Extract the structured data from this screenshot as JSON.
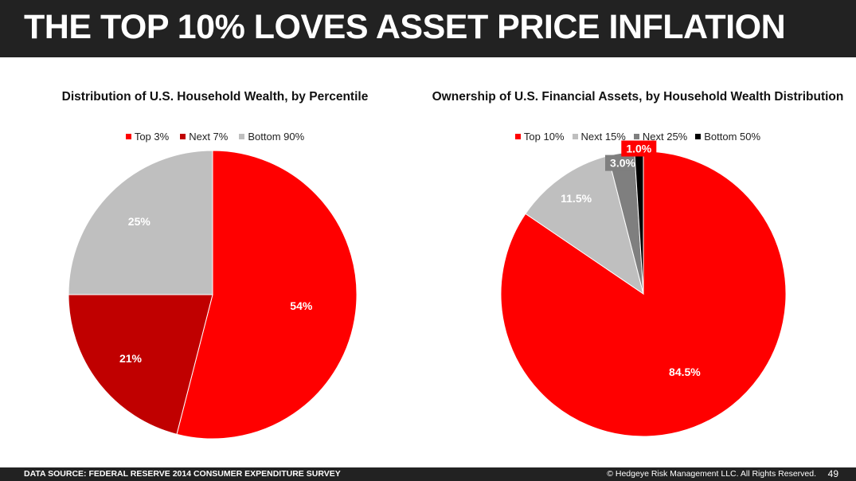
{
  "header": {
    "title": "THE TOP 10% LOVES ASSET PRICE INFLATION"
  },
  "footer": {
    "source": "DATA SOURCE: FEDERAL RESERVE 2014 CONSUMER EXPENDITURE SURVEY",
    "copyright": "© Hedgeye Risk Management LLC. All Rights Reserved.",
    "page_number": "49"
  },
  "chart_data": [
    {
      "type": "pie",
      "title": "Distribution of U.S. Household Wealth, by Percentile",
      "legend_placement": "top",
      "categories": [
        "Top 3%",
        "Next 7%",
        "Bottom 90%"
      ],
      "values": [
        54,
        21,
        25
      ],
      "data_labels": [
        "54%",
        "21%",
        "25%"
      ],
      "colors": [
        "#ff0000",
        "#c00000",
        "#bfbfbf"
      ]
    },
    {
      "type": "pie",
      "title": "Ownership of U.S. Financial Assets, by Household Wealth Distribution",
      "legend_placement": "top",
      "categories": [
        "Top 10%",
        "Next 15%",
        "Next 25%",
        "Bottom 50%"
      ],
      "values": [
        84.5,
        11.5,
        3.0,
        1.0
      ],
      "data_labels": [
        "84.5%",
        "11.5%",
        "3.0%",
        "1.0%"
      ],
      "colors": [
        "#ff0000",
        "#bfbfbf",
        "#7f7f7f",
        "#000000"
      ]
    }
  ]
}
